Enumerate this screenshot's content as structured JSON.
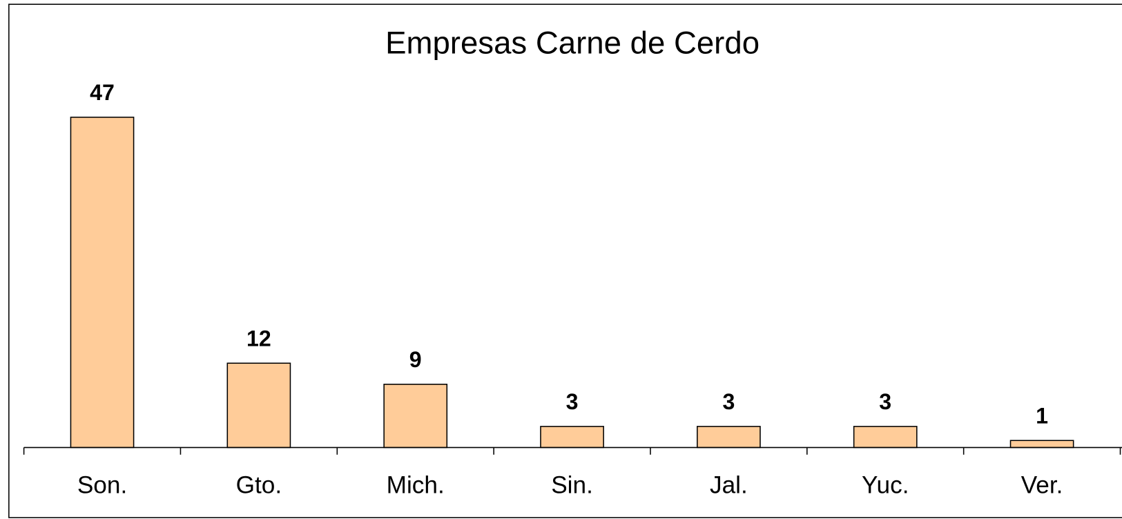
{
  "chart_data": {
    "type": "bar",
    "title": "Empresas Carne de Cerdo",
    "categories": [
      "Son.",
      "Gto.",
      "Mich.",
      "Sin.",
      "Jal.",
      "Yuc.",
      "Ver."
    ],
    "values": [
      47,
      12,
      9,
      3,
      3,
      3,
      1
    ],
    "color": "#ffcc99"
  }
}
